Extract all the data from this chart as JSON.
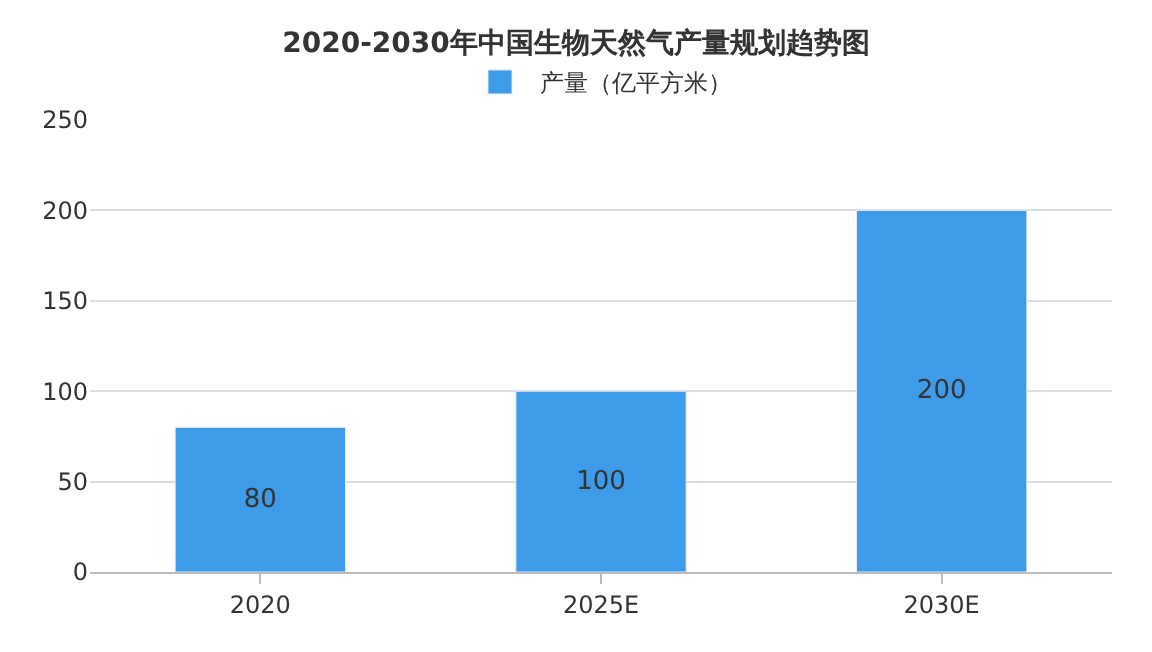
{
  "chart_data": {
    "type": "bar",
    "title": "2020-2030年中国生物天然气产量规划趋势图",
    "categories": [
      "2020",
      "2025E",
      "2030E"
    ],
    "series": [
      {
        "name": "产量（亿平方米）",
        "color": "#3d9be9",
        "values": [
          80,
          100,
          200
        ]
      }
    ],
    "ylim": [
      0,
      250
    ],
    "yticks": [
      0,
      50,
      100,
      150,
      200,
      250
    ],
    "grid": "y",
    "legend": "top",
    "data_labels": true
  }
}
